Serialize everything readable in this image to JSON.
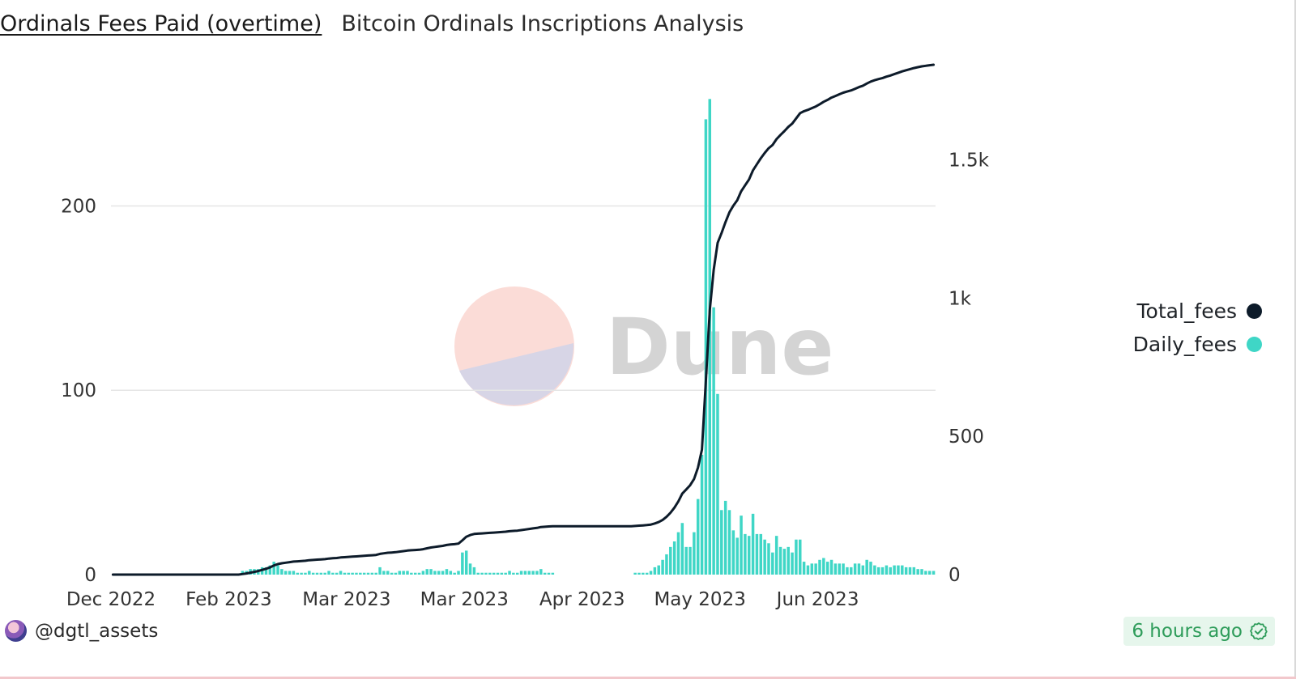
{
  "header": {
    "title": "Ordinals Fees Paid (overtime)",
    "subtitle": "Bitcoin Ordinals Inscriptions Analysis"
  },
  "legend": {
    "items": [
      {
        "label": "Total_fees",
        "color": "#0d1b2a"
      },
      {
        "label": "Daily_fees",
        "color": "#3fd6c6"
      }
    ]
  },
  "footer": {
    "username": "@dgtl_assets",
    "timestamp": "6 hours ago"
  },
  "watermark": {
    "text": "Dune"
  },
  "colors": {
    "line": "#0d1b2a",
    "bar": "#3fd6c6",
    "grid": "#e6e6e6",
    "axis_text": "#333333",
    "timestamp_bg": "#e6f6ec",
    "timestamp_text": "#2e9c5a"
  },
  "chart_data": {
    "type": "bar+line",
    "x_tick_labels": [
      "Dec 2022",
      "Feb 2023",
      "Mar 2023",
      "Mar 2023",
      "Apr 2023",
      "May 2023",
      "Jun 2023"
    ],
    "x_tick_day_index": [
      0,
      30,
      60,
      90,
      120,
      150,
      180
    ],
    "y_left": {
      "ticks": [
        0,
        100,
        200
      ],
      "tick_labels": [
        "0",
        "100",
        "200"
      ],
      "range": [
        0,
        270
      ]
    },
    "y_right": {
      "ticks": [
        0,
        500,
        1000,
        1500
      ],
      "tick_labels": [
        "0",
        "500",
        "1k",
        "1.5k"
      ],
      "range": [
        0,
        1800
      ]
    },
    "grid": "horizontal",
    "legend_position": "right",
    "series": [
      {
        "name": "Daily_fees",
        "type": "bar",
        "axis": "left",
        "values": [
          0,
          0,
          0,
          0,
          0,
          0,
          0,
          0,
          0,
          0,
          0,
          0,
          0,
          0,
          0,
          0,
          0,
          0,
          0,
          0,
          0,
          0,
          0,
          0,
          0,
          0,
          0,
          0,
          0,
          0,
          0,
          0,
          0,
          2,
          2,
          3,
          3,
          3,
          4,
          4,
          5,
          7,
          5,
          3,
          2,
          2,
          2,
          1,
          1,
          1,
          2,
          1,
          1,
          1,
          1,
          2,
          1,
          1,
          2,
          1,
          1,
          1,
          1,
          1,
          1,
          1,
          1,
          1,
          4,
          2,
          2,
          1,
          1,
          2,
          2,
          2,
          1,
          1,
          1,
          2,
          3,
          3,
          2,
          2,
          2,
          3,
          2,
          1,
          2,
          12,
          13,
          6,
          4,
          1,
          1,
          1,
          1,
          1,
          1,
          1,
          1,
          2,
          1,
          1,
          2,
          2,
          2,
          2,
          2,
          3,
          1,
          1,
          1,
          0,
          0,
          0,
          0,
          0,
          0,
          0,
          0,
          0,
          0,
          0,
          0,
          0,
          0,
          0,
          0,
          0,
          0,
          0,
          0,
          1,
          1,
          1,
          1,
          2,
          4,
          5,
          8,
          11,
          15,
          18,
          23,
          28,
          15,
          15,
          23,
          41,
          65,
          247,
          258,
          145,
          98,
          35,
          40,
          35,
          24,
          20,
          32,
          22,
          21,
          33,
          22,
          22,
          19,
          17,
          12,
          21,
          15,
          14,
          15,
          12,
          19,
          19,
          7,
          5,
          6,
          6,
          8,
          9,
          7,
          8,
          6,
          6,
          6,
          4,
          4,
          6,
          6,
          5,
          8,
          7,
          5,
          4,
          4,
          5,
          4,
          5,
          5,
          5,
          4,
          4,
          4,
          3,
          3,
          2,
          2,
          2
        ],
        "color": "#3fd6c6"
      },
      {
        "name": "Total_fees",
        "type": "line",
        "axis": "right",
        "values": [
          0,
          0,
          0,
          0,
          0,
          0,
          0,
          0,
          0,
          0,
          0,
          0,
          0,
          0,
          0,
          0,
          0,
          0,
          0,
          0,
          0,
          0,
          0,
          0,
          0,
          0,
          0,
          0,
          0,
          0,
          0,
          0,
          0,
          2,
          4,
          7,
          10,
          13,
          17,
          21,
          26,
          33,
          38,
          41,
          43,
          45,
          47,
          48,
          49,
          50,
          52,
          53,
          54,
          55,
          56,
          58,
          59,
          60,
          62,
          63,
          64,
          65,
          66,
          67,
          68,
          69,
          70,
          71,
          75,
          77,
          79,
          80,
          81,
          83,
          85,
          87,
          88,
          89,
          90,
          92,
          95,
          98,
          100,
          102,
          104,
          107,
          109,
          110,
          112,
          124,
          137,
          143,
          147,
          148,
          149,
          150,
          151,
          152,
          153,
          154,
          155,
          157,
          158,
          159,
          161,
          163,
          165,
          167,
          169,
          172,
          173,
          174,
          175,
          175,
          175,
          175,
          175,
          175,
          175,
          175,
          175,
          175,
          175,
          175,
          175,
          175,
          175,
          175,
          175,
          175,
          175,
          175,
          175,
          176,
          177,
          178,
          179,
          181,
          185,
          190,
          198,
          209,
          224,
          242,
          265,
          293,
          308,
          323,
          346,
          387,
          452,
          699,
          957,
          1102,
          1200,
          1235,
          1275,
          1310,
          1334,
          1354,
          1386,
          1408,
          1429,
          1462,
          1484,
          1506,
          1525,
          1542,
          1554,
          1575,
          1590,
          1604,
          1619,
          1631,
          1650,
          1669,
          1676,
          1681,
          1687,
          1693,
          1701,
          1710,
          1717,
          1725,
          1731,
          1737,
          1743,
          1747,
          1751,
          1757,
          1763,
          1768,
          1776,
          1783,
          1788,
          1792,
          1796,
          1801,
          1805,
          1810,
          1815,
          1820,
          1824,
          1828,
          1832,
          1835,
          1838,
          1840,
          1842,
          1844
        ],
        "color": "#0d1b2a"
      }
    ]
  }
}
